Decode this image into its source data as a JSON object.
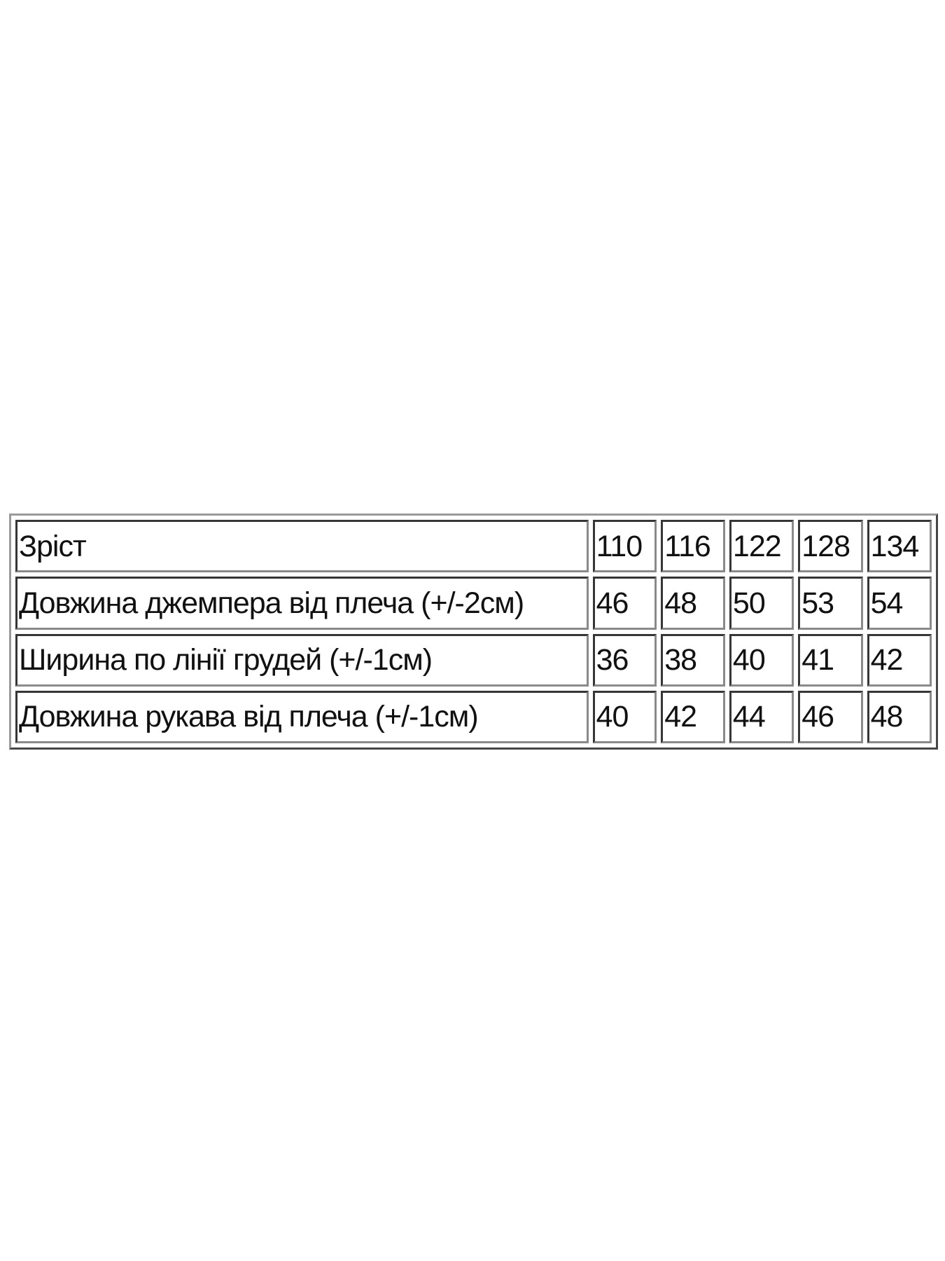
{
  "table": {
    "header": {
      "label": "Зріст",
      "sizes": [
        "110",
        "116",
        "122",
        "128",
        "134"
      ]
    },
    "rows": [
      {
        "label": "Довжина джемпера від плеча (+/-2см)",
        "values": [
          "46",
          "48",
          "50",
          "53",
          "54"
        ]
      },
      {
        "label": "Ширина по лінії грудей (+/-1см)",
        "values": [
          "36",
          "38",
          "40",
          "41",
          "42"
        ]
      },
      {
        "label": "Довжина рукава від плеча (+/-1см)",
        "values": [
          "40",
          "42",
          "44",
          "46",
          "48"
        ]
      }
    ]
  }
}
